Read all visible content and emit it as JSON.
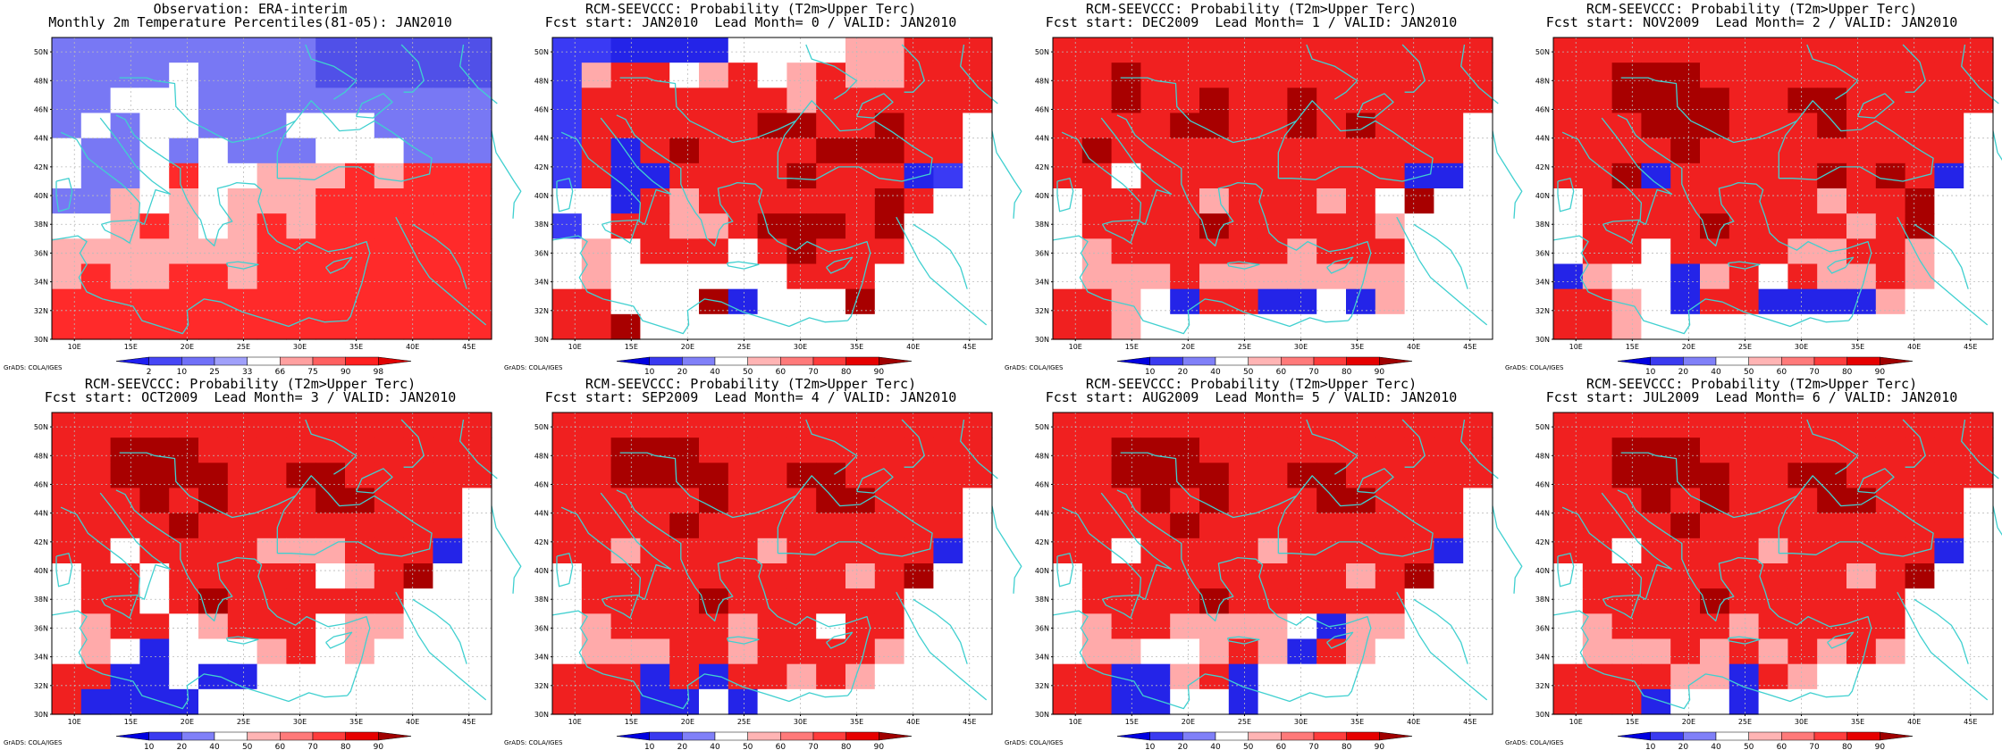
{
  "panels": [
    {
      "id": "observation",
      "title1": "Observation: ERA-interim",
      "title2": "Monthly 2m Temperature Percentiles(81-05): JAN2010",
      "scale": "obs",
      "grid": [
        "BBBBBBBBBDDDDDD",
        "BBBBWBBBBDDDDDD",
        "BBWWWBBBBBBBBBB",
        "BWBWWBBBWWWBBBB",
        "WBBWBWBBBWWWBBB",
        "WBBWRWWSSSRSRRR",
        "BBSWSWSSSRRRRRR",
        "WWSRSWSRSRRRRRR",
        "SSSSSSSRRRRRRRR",
        "SRSSRRSRRRRRRRR",
        "RRRRRRRRRRRRRRR",
        "RRRRRRRRRRRRRRR"
      ]
    },
    {
      "id": "lead0",
      "title1": "RCM-SEEVCCC: Probability (T2m>Upper Terc)",
      "title2": "Fcst start: JAN2010  Lead Month= 0 / VALID: JAN2010",
      "scale": "prob",
      "grid": [
        "DDBBBBWWWWSSRRR",
        "DSRRWSRWSRSSRRR",
        "DRRRRRRRSRRRRRR",
        "DRRRRRRKKRRKRRW",
        "DRBRKRRRRKKKRRW",
        "DRBBRRRRKRRRBDW",
        "WWBRSRRRRRRKRWW",
        "DWRRSSRKKKRKWWW",
        "WSWRRRWRKRRRWWW",
        "WSWWWWWWRRRWWWW",
        "RRWWWKBWWWKWWWW",
        "RRKWWWWWWWWWWWW"
      ]
    },
    {
      "id": "lead1",
      "title1": "RCM-SEEVCCC: Probability (T2m>Upper Terc)",
      "title2": "Fcst start: DEC2009  Lead Month= 1 / VALID: JAN2010",
      "scale": "prob",
      "grid": [
        "RRRRRRRRRRRRRRR",
        "RRKRRRRRRRRRRRR",
        "RRKRRKRRKRRRRRR",
        "RRRRKKRRKRKRRRW",
        "RKRRRRRRRRRRRRW",
        "RRWRRRRRRRRRBBW",
        "WRRRRSRRRSRWKWW",
        "WRRRRKRRRRRSWWW",
        "WSRRRRRRSRRRWWW",
        "WSSSRSSSSSSSWWW",
        "RRSWBRRBBWBSWWW",
        "RRSWWWWWWWWWWWW"
      ]
    },
    {
      "id": "lead2",
      "title1": "RCM-SEEVCCC: Probability (T2m>Upper Terc)",
      "title2": "Fcst start: NOV2009  Lead Month= 2 / VALID: JAN2010",
      "scale": "prob",
      "grid": [
        "RRRRRRRRRRRRRRR",
        "RRKKKRRRRRRRRRR",
        "RRKKKKRRKKRRRRR",
        "RRRKKKRRRKRRRRW",
        "RRRRKRRRRRRRRRW",
        "RRKBRRRRRKRKRBW",
        "WRRRRRRRRSRRKWW",
        "WRRRRKRRRRSRKWW",
        "WRRWRRRRSSRRSWW",
        "BSWWBSRWRSSRSWW",
        "RRSWBRRBBBBSWWW",
        "RRSWWWWWWWWWWWW"
      ]
    },
    {
      "id": "lead3",
      "title1": "RCM-SEEVCCC: Probability (T2m>Upper Terc)",
      "title2": "Fcst start: OCT2009  Lead Month= 3 / VALID: JAN2010",
      "scale": "prob",
      "grid": [
        "RRRRRRRRRRRRRRR",
        "RRKKKRRRRRRRRRR",
        "RRKKKKRRKKRRRRR",
        "RRRKRKRRRKKRRRW",
        "RRRRKRRRRRRRRRW",
        "RRWRRRRSSSRRRBW",
        "WRRWRRRRRWSRKWW",
        "WRRWRKRRRRRRWWW",
        "WSRRWSRRRWSSWWW",
        "WSWBWWWSRWSWWWW",
        "RRBBWBBWWWWWWWW",
        "RBBBBWWWWWWWWWW"
      ]
    },
    {
      "id": "lead4",
      "title1": "RCM-SEEVCCC: Probability (T2m>Upper Terc)",
      "title2": "Fcst start: SEP2009  Lead Month= 4 / VALID: JAN2010",
      "scale": "prob",
      "grid": [
        "RRRRRRRRRRRRRRR",
        "RRKKKRRRRRRRRRR",
        "RRKKKKRRKKRRRRR",
        "RRRRRKRRRKKRRRW",
        "RRRRKRRRRRRRRRW",
        "RRSRRRRSRRRRRBW",
        "WRRRRRRRRRSRKWW",
        "WRRRRKRRRRRRWWW",
        "WSRRRRSRRWRRWWW",
        "WSSSRRSRRRRSWWW",
        "RRRBRBRRSRSWWWW",
        "RRRBBWBWWWWWWWW"
      ]
    },
    {
      "id": "lead5",
      "title1": "RCM-SEEVCCC: Probability (T2m>Upper Terc)",
      "title2": "Fcst start: AUG2009  Lead Month= 5 / VALID: JAN2010",
      "scale": "prob",
      "grid": [
        "RRRRRRRRRRRRRRR",
        "RRKKKRRRRRRRRRR",
        "RRKKKKRRKKRRRRR",
        "RRRKRKRRRKKRRRW",
        "RRRRKRRRRRRRRRW",
        "RRWRRRRSRRRRRBW",
        "WRRRRRRRRRSRKWW",
        "WRRRRKRRRRRRWWW",
        "WSRRSSSSWBSSWWW",
        "WSSWWSRSBRSWWWW",
        "RRBBSRBWWWWWWWW",
        "RRBBWWBWWWWWWWW"
      ]
    },
    {
      "id": "lead6",
      "title1": "RCM-SEEVCCC: Probability (T2m>Upper Terc)",
      "title2": "Fcst start: JUL2009  Lead Month= 6 / VALID: JAN2010",
      "scale": "prob",
      "grid": [
        "RRRRRRRRRRRRRRR",
        "RRKKKRRRRRRRRRR",
        "RRKKKKRRKKRRRRR",
        "RRRKRKRRRKKRRRW",
        "RRRRKRRRRRRRRRW",
        "RRWRRRRSRRRRRBW",
        "WRRRRRRRRRSRKWW",
        "WRRRRKRRRRRRWWW",
        "WSRRRRSRRRRRWWW",
        "WSSSRSRSRSRSWWW",
        "RRRRSSBRSWWWWWW",
        "RRRBWWBWWWWWWWW"
      ]
    }
  ],
  "map": {
    "lat_labels": [
      "50N",
      "48N",
      "46N",
      "44N",
      "42N",
      "40N",
      "38N",
      "36N",
      "34N",
      "32N",
      "30N"
    ],
    "lon_labels": [
      "10E",
      "15E",
      "20E",
      "25E",
      "30E",
      "35E",
      "40E",
      "45E"
    ],
    "credit": "GrADS: COLA/IGES",
    "coast_color": "#40d0d0",
    "grid_color": "#bbbbbb"
  },
  "colorbars": {
    "obs": {
      "labels": [
        "2",
        "10",
        "25",
        "33",
        "66",
        "75",
        "90",
        "98"
      ],
      "colors": [
        "#1e1ef0",
        "#4646f5",
        "#7070f8",
        "#a0a0fa",
        "#ffffff",
        "#ffa0a0",
        "#ff6060",
        "#ff2020",
        "#e00000"
      ]
    },
    "prob": {
      "labels": [
        "10",
        "20",
        "40",
        "50",
        "60",
        "70",
        "80",
        "90"
      ],
      "colors": [
        "#0000e0",
        "#3a3af0",
        "#8080f8",
        "#ffffff",
        "#ffb4b4",
        "#ff7a7a",
        "#ff3c3c",
        "#e60000",
        "#a00000"
      ]
    }
  },
  "palette": {
    "obs": {
      "B": "#7878f4",
      "D": "#5050e8",
      "L": "#a8a8f8",
      "W": "#ffffff",
      "S": "#ffb0b0",
      "R": "#ff2a2a",
      "K": "#c80000"
    },
    "prob": {
      "B": "#2424e8",
      "D": "#3a3af4",
      "L": "#8c8cf8",
      "W": "#ffffff",
      "S": "#ffaaaa",
      "R": "#f02020",
      "K": "#a80000"
    }
  }
}
